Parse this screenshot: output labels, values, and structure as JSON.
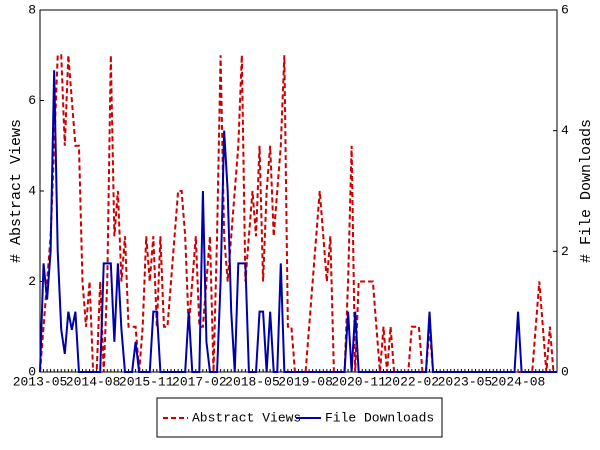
{
  "chart_data": {
    "type": "line",
    "ylabel": "# Abstract Views",
    "y2label": "# File Downloads",
    "categories": [
      "2013-05",
      null,
      null,
      null,
      null,
      null,
      null,
      null,
      null,
      null,
      null,
      null,
      null,
      null,
      null,
      "2014-08",
      null,
      null,
      null,
      null,
      null,
      null,
      null,
      null,
      null,
      null,
      null,
      null,
      null,
      null,
      "2015-11",
      null,
      null,
      null,
      null,
      null,
      null,
      null,
      null,
      null,
      null,
      null,
      null,
      null,
      null,
      "2017-02",
      null,
      null,
      null,
      null,
      null,
      null,
      null,
      null,
      null,
      null,
      null,
      null,
      null,
      null,
      "2018-05",
      null,
      null,
      null,
      null,
      null,
      null,
      null,
      null,
      null,
      null,
      null,
      null,
      null,
      null,
      "2019-08",
      null,
      null,
      null,
      null,
      null,
      null,
      null,
      null,
      null,
      null,
      null,
      null,
      null,
      null,
      "2020-11",
      null,
      null,
      null,
      null,
      null,
      null,
      null,
      null,
      null,
      null,
      null,
      null,
      null,
      null,
      "2022-02",
      null,
      null,
      null,
      null,
      null,
      null,
      null,
      null,
      null,
      null,
      null,
      null,
      null,
      null,
      "2023-05",
      null,
      null,
      null,
      null,
      null,
      null,
      null,
      null,
      null,
      null,
      null,
      null,
      null,
      null,
      "2024-08",
      null,
      null,
      null,
      null,
      null,
      null,
      null,
      null,
      null,
      null,
      null
    ],
    "series": [
      {
        "name": "Abstract Views",
        "color": "#cc0000",
        "dash": true,
        "values": [
          0,
          1,
          2,
          3,
          5,
          7,
          7,
          5,
          7,
          6,
          5,
          5,
          2,
          1,
          2,
          0,
          0,
          2,
          0,
          2,
          7,
          3,
          4,
          2,
          3,
          1,
          1,
          1,
          0,
          1,
          3,
          2,
          3,
          1,
          3,
          1,
          1,
          2,
          3,
          4,
          4,
          3,
          1,
          2,
          3,
          1,
          1,
          2,
          3,
          0,
          3,
          7,
          3,
          2,
          3,
          4,
          5,
          7,
          2,
          3,
          4,
          3,
          5,
          2,
          4,
          5,
          3,
          4,
          5,
          7,
          1,
          1,
          0,
          0,
          0,
          0,
          1,
          2,
          3,
          4,
          3,
          2,
          3,
          0,
          0,
          0,
          0,
          2,
          5,
          0,
          2,
          2,
          2,
          2,
          2,
          1,
          0,
          1,
          0,
          1,
          0,
          0,
          0,
          0,
          0,
          1,
          1,
          1,
          0,
          0,
          1,
          0,
          0,
          0,
          0,
          0,
          0,
          0,
          0,
          0,
          0,
          0,
          0,
          0,
          0,
          0,
          0,
          0,
          0,
          0,
          0,
          0,
          0,
          0,
          0,
          0,
          0,
          0,
          0,
          0,
          1,
          2,
          1,
          0,
          1,
          0,
          0
        ]
      },
      {
        "name": "File Downloads",
        "color": "#0000aa",
        "axis": "y2",
        "values": [
          0,
          1.8,
          1.2,
          2,
          5,
          2,
          0.7,
          0.3,
          1,
          0.7,
          1,
          0,
          0,
          0,
          0,
          0,
          0,
          0,
          1.8,
          1.8,
          1.8,
          0.5,
          1.8,
          0.7,
          0,
          0,
          0,
          0.5,
          0,
          0,
          0,
          0,
          1,
          1,
          0,
          0,
          0,
          0,
          0,
          0,
          0,
          0,
          1,
          0,
          0,
          0,
          3,
          0.5,
          0,
          0,
          0,
          1.5,
          4,
          3,
          1,
          0,
          1.8,
          1.8,
          1.8,
          0,
          0,
          0,
          1,
          1,
          0,
          1,
          0,
          0,
          1.8,
          0,
          0,
          0,
          0,
          0,
          0,
          0,
          0,
          0,
          0,
          0,
          0,
          0,
          0,
          0,
          0,
          0,
          0,
          1,
          0,
          1,
          0,
          0,
          0,
          0,
          0,
          0,
          0,
          0,
          0,
          0,
          0,
          0,
          0,
          0,
          0,
          0,
          0,
          0,
          0,
          0,
          1,
          0,
          0,
          0,
          0,
          0,
          0,
          0,
          0,
          0,
          0,
          0,
          0,
          0,
          0,
          0,
          0,
          0,
          0,
          0,
          0,
          0,
          0,
          0,
          0,
          1,
          0,
          0,
          0,
          0,
          0,
          0,
          0,
          0,
          0,
          0,
          0
        ]
      }
    ],
    "ylim": [
      0,
      8
    ],
    "yticks": [
      0,
      2,
      4,
      6,
      8
    ],
    "y2lim": [
      0,
      6
    ],
    "y2ticks": [
      0,
      2,
      4,
      6
    ],
    "legend": "bottom"
  }
}
